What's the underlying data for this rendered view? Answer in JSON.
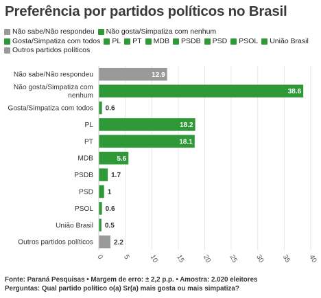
{
  "chart_data": {
    "type": "bar",
    "orientation": "horizontal",
    "title": "Preferência por partidos políticos no Brasil",
    "categories": [
      "Não sabe/Não respondeu",
      "Não gosta/Simpatiza com nenhum",
      "Gosta/Simpatiza com todos",
      "PL",
      "PT",
      "MDB",
      "PSDB",
      "PSD",
      "PSOL",
      "União Brasil",
      "Outros partidos políticos"
    ],
    "values": [
      12.9,
      38.6,
      0.6,
      18.2,
      18.1,
      5.6,
      1.7,
      1,
      0.6,
      0.5,
      2.2
    ],
    "bar_colors": [
      "#999999",
      "#2e9936",
      "#2e9936",
      "#2e9936",
      "#2e9936",
      "#2e9936",
      "#2e9936",
      "#2e9936",
      "#2e9936",
      "#2e9936",
      "#999999"
    ],
    "xlim": [
      0,
      40
    ],
    "xticks": [
      0,
      5,
      10,
      15,
      20,
      25,
      30,
      35,
      40
    ],
    "grid": true,
    "legend": {
      "placement": "top",
      "entries": [
        {
          "label": "Não sabe/Não respondeu",
          "color": "#999999"
        },
        {
          "label": "Não gosta/Simpatiza com nenhum",
          "color": "#2e9936"
        },
        {
          "label": "Gosta/Simpatiza com todos",
          "color": "#2e9936"
        },
        {
          "label": "PL",
          "color": "#2e9936"
        },
        {
          "label": "PT",
          "color": "#2e9936"
        },
        {
          "label": "MDB",
          "color": "#2e9936"
        },
        {
          "label": "PSDB",
          "color": "#2e9936"
        },
        {
          "label": "PSD",
          "color": "#2e9936"
        },
        {
          "label": "PSOL",
          "color": "#2e9936"
        },
        {
          "label": "União Brasil",
          "color": "#2e9936"
        },
        {
          "label": "Outros partidos políticos",
          "color": "#999999"
        }
      ]
    }
  },
  "footer": {
    "source": "Fonte: Paraná Pesquisas • Margem de erro: ± 2,2 p.p. • Amostra: 2.020 eleitores",
    "question": "Perguntas: Qual partido político o(a) Sr(a) mais gosta ou mais simpatiza?"
  }
}
